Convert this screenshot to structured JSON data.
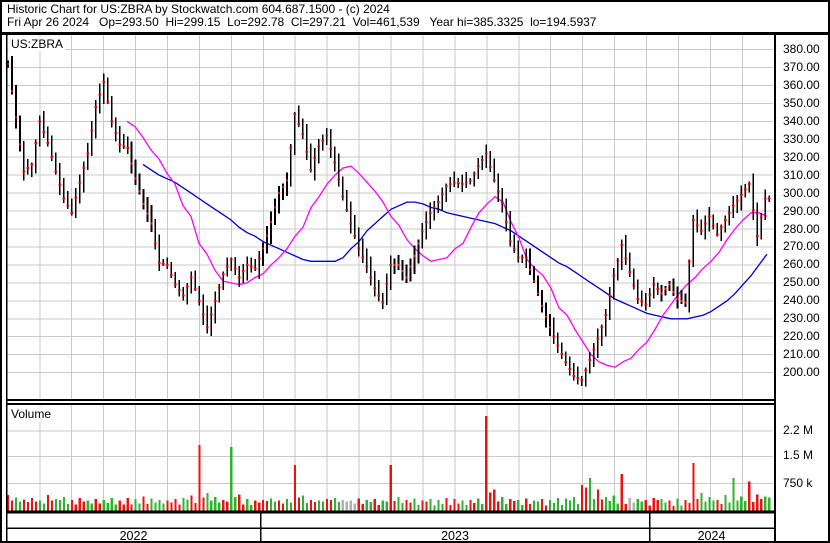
{
  "header": {
    "line1": "Historic Chart for US:ZBRA by Stockwatch.com 604.687.1500 - (c) 2024",
    "line2": "Fri Apr 26 2024   Op=293.50  Hi=299.15  Lo=292.78  Cl=297.21  Vol=461,539   Year hi=385.3325  lo=194.5937"
  },
  "symbol_label": "US:ZBRA",
  "volume_label": "Volume",
  "quote": {
    "date": "Fri Apr 26 2024",
    "open": 293.5,
    "high": 299.15,
    "low": 292.78,
    "close": 297.21,
    "volume": "461,539",
    "year_high": 385.3325,
    "year_low": 194.5937
  },
  "price_axis": {
    "labels": [
      "380.00",
      "370.00",
      "360.00",
      "350.00",
      "340.00",
      "330.00",
      "320.00",
      "310.00",
      "300.00",
      "290.00",
      "280.00",
      "270.00",
      "260.00",
      "250.00",
      "240.00",
      "230.00",
      "220.00",
      "210.00",
      "200.00"
    ]
  },
  "volume_axis": {
    "labels": [
      "2.2 M",
      "1.5 M",
      "750 k"
    ],
    "values_k": [
      2200,
      1500,
      750
    ]
  },
  "time_axis": {
    "years": [
      "2022",
      "2023",
      "2024"
    ]
  },
  "colors": {
    "bar": "#000000",
    "close_tick": "#ff0000",
    "ma_fast": "#ff00ff",
    "ma_slow": "#0000cc",
    "volume_up": "#2db42d",
    "volume_down": "#ee1111",
    "volume_neutral": "#b0b0b0",
    "grid": "#c9c9c9",
    "border": "#000000",
    "background": "#ffffff",
    "text": "#000000"
  },
  "chart_data": {
    "type": "line",
    "title": "Historic Chart for US:ZBRA",
    "subtitle": "Daily OHLC bars with red close ticks, two moving averages, volume sub-pane",
    "x_range": "late Apr 2022 to Apr 26 2024",
    "x_samples": 96,
    "ylim": [
      195,
      385
    ],
    "y_gridline_step": 10,
    "volume_ylim_k": [
      0,
      2900
    ],
    "grid": true,
    "legend_position": "none",
    "series": [
      {
        "name": "price_close",
        "color": "#000000",
        "values": [
          372,
          342,
          312,
          316,
          340,
          328,
          312,
          297,
          289,
          306,
          322,
          348,
          362,
          340,
          327,
          325,
          308,
          294,
          283,
          261,
          260,
          249,
          243,
          253,
          240,
          225,
          240,
          255,
          263,
          253,
          260,
          258,
          269,
          284,
          300,
          307,
          344,
          333,
          313,
          326,
          332,
          317,
          298,
          283,
          269,
          259,
          247,
          239,
          260,
          260,
          253,
          265,
          279,
          289,
          295,
          304,
          306,
          305,
          307,
          315,
          322,
          307,
          295,
          273,
          264,
          264,
          251,
          237,
          225,
          215,
          206,
          198,
          196,
          207,
          219,
          232,
          254,
          271,
          256,
          241,
          238,
          249,
          244,
          249,
          241,
          239,
          285,
          279,
          287,
          277,
          285,
          293,
          299,
          305,
          276,
          297
        ]
      },
      {
        "name": "ma_fast",
        "color": "#ff00ff",
        "values": [
          null,
          null,
          null,
          null,
          null,
          null,
          null,
          null,
          null,
          null,
          null,
          null,
          null,
          null,
          null,
          340,
          337,
          331,
          324,
          319,
          311,
          305,
          293,
          287,
          272,
          266,
          257,
          251,
          250,
          249,
          250,
          253,
          255,
          260,
          264,
          269,
          276,
          281,
          292,
          298,
          305,
          310,
          314,
          315,
          311,
          306,
          301,
          295,
          287,
          282,
          274,
          269,
          265,
          262,
          263,
          264,
          269,
          272,
          281,
          289,
          294,
          298,
          295,
          284,
          275,
          263,
          258,
          254,
          247,
          236,
          232,
          224,
          217,
          210,
          206,
          204,
          203,
          206,
          208,
          213,
          217,
          224,
          232,
          238,
          244,
          249,
          253,
          258,
          262,
          267,
          274,
          280,
          285,
          289,
          289,
          287
        ]
      },
      {
        "name": "ma_slow",
        "color": "#0000cc",
        "values": [
          null,
          null,
          null,
          null,
          null,
          null,
          null,
          null,
          null,
          null,
          null,
          null,
          null,
          null,
          null,
          null,
          null,
          316,
          313,
          310,
          308,
          306,
          303,
          300,
          297,
          294,
          291,
          288,
          285,
          281,
          278,
          276,
          273,
          271,
          269,
          267,
          265,
          263,
          262,
          262,
          262,
          262,
          264,
          269,
          273,
          279,
          283,
          287,
          291,
          293,
          295,
          295,
          294,
          292,
          291,
          289,
          288,
          287,
          286,
          285,
          284,
          283,
          281,
          279,
          276,
          273,
          270,
          267,
          264,
          261,
          259,
          256,
          253,
          250,
          247,
          244,
          241,
          239,
          237,
          235,
          233,
          232,
          231,
          230,
          230,
          230,
          231,
          232,
          234,
          237,
          240,
          244,
          249,
          254,
          260,
          266
        ]
      },
      {
        "name": "volume_k",
        "color": "mixed",
        "bar_colors": "rgrrgrggrrgrggrrgrggrrgrrggrgrgrrgrgrgrgrgaargrgrgrgrggrrgrgrrgrgrgrggggrgrggragrrgrgrrggrgggrrgr",
        "values": [
          420,
          360,
          300,
          340,
          280,
          430,
          310,
          370,
          290,
          350,
          270,
          320,
          290,
          340,
          270,
          350,
          310,
          390,
          330,
          290,
          270,
          320,
          350,
          410,
          1800,
          480,
          370,
          290,
          1750,
          440,
          310,
          270,
          290,
          330,
          270,
          310,
          1250,
          410,
          290,
          270,
          310,
          350,
          290,
          270,
          330,
          290,
          310,
          270,
          1250,
          370,
          290,
          330,
          270,
          310,
          290,
          350,
          310,
          270,
          290,
          330,
          2600,
          580,
          370,
          310,
          290,
          330,
          270,
          310,
          290,
          350,
          330,
          370,
          700,
          900,
          580,
          370,
          410,
          1000,
          350,
          310,
          290,
          350,
          310,
          270,
          330,
          290,
          1300,
          480,
          370,
          290,
          420,
          900,
          380,
          800,
          440,
          380
        ]
      }
    ]
  }
}
